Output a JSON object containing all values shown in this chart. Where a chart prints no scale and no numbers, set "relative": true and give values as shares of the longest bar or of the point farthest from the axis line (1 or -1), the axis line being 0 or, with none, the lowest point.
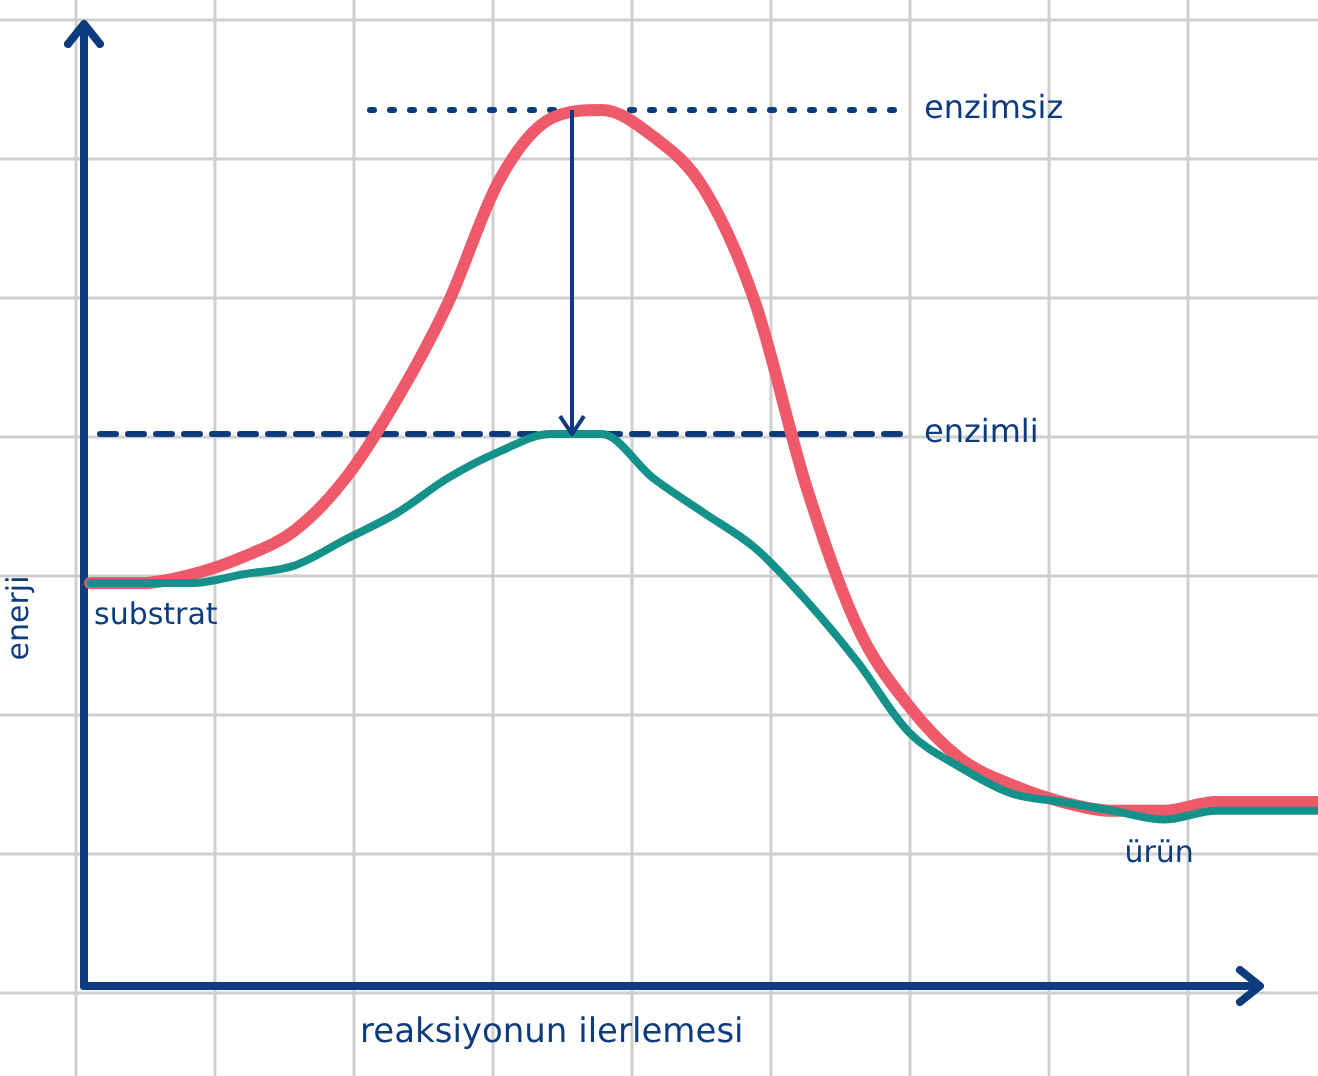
{
  "chart_data": {
    "type": "line",
    "relative": true,
    "xlabel": "reaksiyonun ilerlemesi",
    "ylabel": "enerji",
    "grid": true,
    "legend": false,
    "marker": "none",
    "line_style": "solid",
    "categories": [
      null,
      null,
      null,
      null,
      null,
      null,
      null,
      null,
      null,
      null,
      null,
      null,
      null,
      null,
      null,
      null,
      null,
      null,
      null,
      null,
      null,
      null,
      null,
      null,
      null
    ],
    "series": [
      {
        "color": "#ee5a6a",
        "values": [
          0.46,
          0.46,
          0.47,
          0.49,
          0.52,
          0.58,
          0.67,
          0.78,
          0.92,
          0.99,
          1.0,
          0.97,
          0.91,
          0.78,
          0.57,
          0.41,
          0.32,
          0.26,
          0.23,
          0.21,
          0.2,
          0.2,
          0.21,
          0.21,
          0.21
        ]
      },
      {
        "color": "#15918c",
        "values": [
          0.46,
          0.46,
          0.46,
          0.47,
          0.48,
          0.51,
          0.54,
          0.58,
          0.61,
          0.63,
          0.63,
          0.58,
          0.54,
          0.5,
          0.44,
          0.37,
          0.29,
          0.25,
          0.22,
          0.21,
          0.2,
          0.19,
          0.2,
          0.2,
          0.2
        ]
      }
    ],
    "ref_lines": [
      {
        "axis": "y",
        "value": 1.0,
        "label": "enzimsiz",
        "color": "#0d3b7e",
        "line_style": "dotted"
      },
      {
        "axis": "y",
        "value": 0.63,
        "label": "enzimli",
        "color": "#0d3b7e",
        "line_style": "dashed"
      }
    ],
    "annotations": [
      "substrat",
      "ürün"
    ]
  }
}
